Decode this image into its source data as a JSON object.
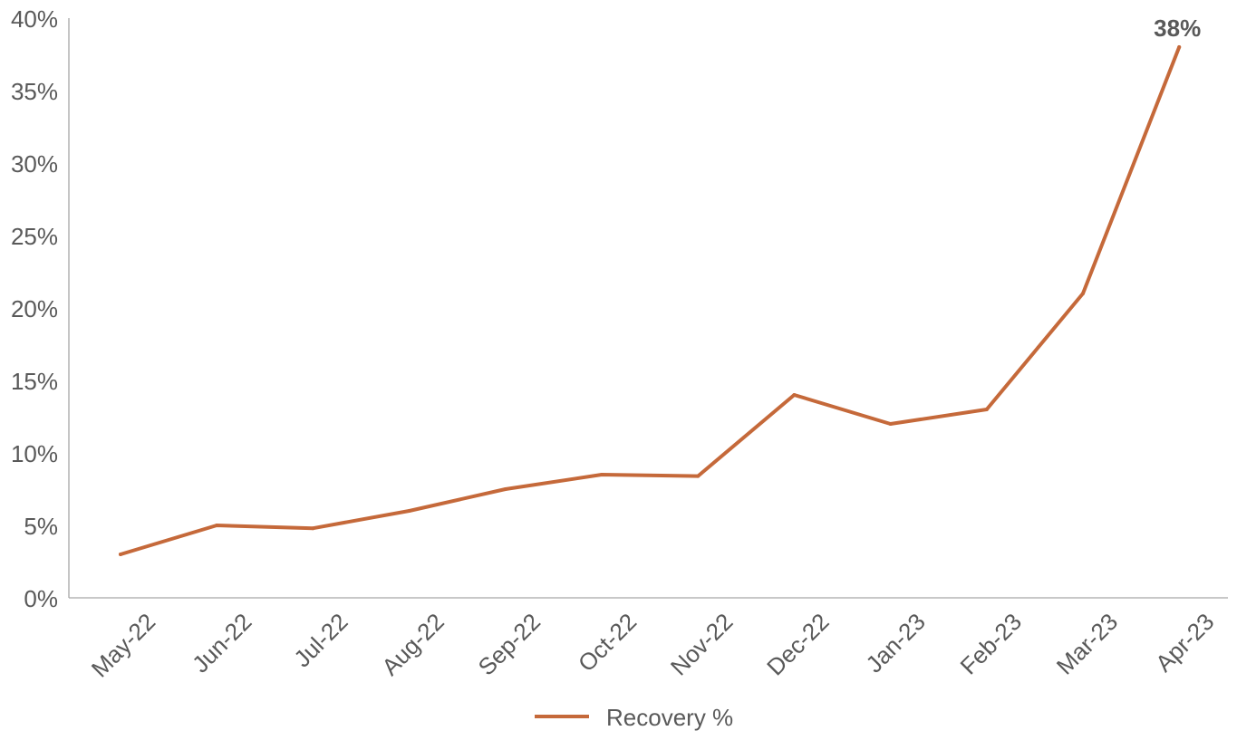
{
  "chart_data": {
    "type": "line",
    "title": "",
    "xlabel": "",
    "ylabel": "",
    "categories": [
      "May-22",
      "Jun-22",
      "Jul-22",
      "Aug-22",
      "Sep-22",
      "Oct-22",
      "Nov-22",
      "Dec-22",
      "Jan-23",
      "Feb-23",
      "Mar-23",
      "Apr-23"
    ],
    "series": [
      {
        "name": "Recovery %",
        "color": "#C5693A",
        "values": [
          3.0,
          5.0,
          4.8,
          6.0,
          7.5,
          8.5,
          8.4,
          14.0,
          12.0,
          13.0,
          21.0,
          38.0
        ]
      }
    ],
    "ylim": [
      0,
      40
    ],
    "yticks": [
      0,
      5,
      10,
      15,
      20,
      25,
      30,
      35,
      40
    ],
    "ytick_labels": [
      "0%",
      "5%",
      "10%",
      "15%",
      "20%",
      "25%",
      "30%",
      "35%",
      "40%"
    ],
    "data_labels": [
      {
        "category": "Apr-23",
        "text": "38%"
      }
    ],
    "grid": false,
    "legend": {
      "position": "bottom",
      "entries": [
        "Recovery %"
      ]
    },
    "axis_color": "#A6A6A6",
    "text_color": "#595959"
  }
}
